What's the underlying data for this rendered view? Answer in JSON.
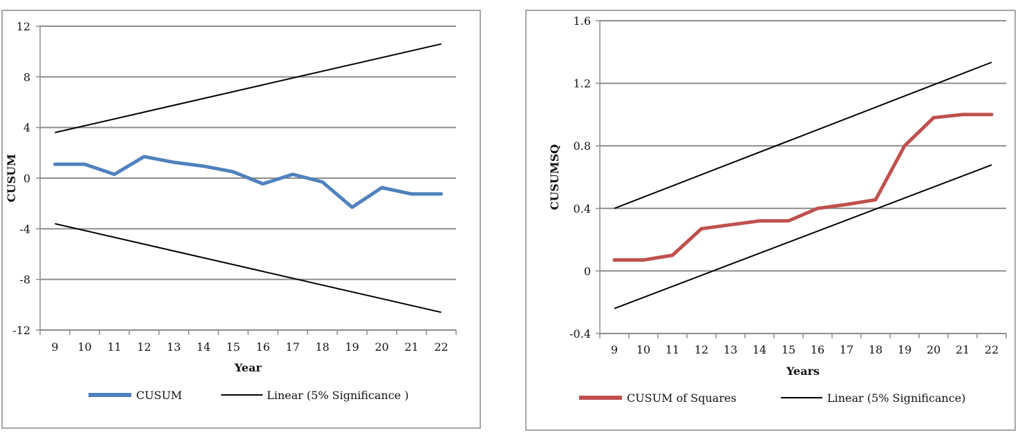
{
  "chart_data": [
    {
      "type": "line",
      "x": [
        9,
        10,
        11,
        12,
        13,
        14,
        15,
        16,
        17,
        18,
        19,
        20,
        21,
        22
      ],
      "xlabel": "Year",
      "ylabel": "CUSUM",
      "ylim": [
        -12,
        12
      ],
      "yticks": [
        "12",
        "8",
        "4",
        "0",
        "-4",
        "-8",
        "-12"
      ],
      "grid": true,
      "legend_position": "bottom",
      "series": [
        {
          "name": "CUSUM",
          "color": "#4F81BD",
          "values": [
            1.1,
            1.1,
            0.3,
            1.7,
            1.25,
            0.95,
            0.5,
            -0.45,
            0.3,
            -0.3,
            -2.3,
            -0.75,
            -1.25,
            -1.25
          ]
        },
        {
          "name": "Linear (5% Significance )",
          "color": "#000000",
          "values": [
            3.6,
            4.13,
            4.67,
            5.2,
            5.73,
            6.27,
            6.8,
            7.34,
            7.87,
            8.4,
            8.94,
            9.47,
            10.0,
            10.6
          ]
        },
        {
          "name": "",
          "color": "#000000",
          "values": [
            -3.6,
            -4.13,
            -4.67,
            -5.2,
            -5.73,
            -6.27,
            -6.8,
            -7.34,
            -7.87,
            -8.4,
            -8.94,
            -9.47,
            -10.0,
            -10.6
          ]
        }
      ]
    },
    {
      "type": "line",
      "x": [
        9,
        10,
        11,
        12,
        13,
        14,
        15,
        16,
        17,
        18,
        19,
        20,
        21,
        22
      ],
      "xlabel": "Years",
      "ylabel": "CUSUMSQ",
      "ylim": [
        -0.4,
        1.6
      ],
      "yticks": [
        "1.6",
        "1.2",
        "0.8",
        "0.4",
        "0",
        "-0.4"
      ],
      "grid": true,
      "legend_position": "bottom",
      "series": [
        {
          "name": "CUSUM of Squares",
          "color": "#C0504D",
          "values": [
            0.07,
            0.07,
            0.1,
            0.27,
            0.295,
            0.32,
            0.32,
            0.4,
            0.425,
            0.455,
            0.8,
            0.98,
            1.0,
            1.0
          ]
        },
        {
          "name": "Linear (5% Significance)",
          "color": "#000000",
          "values": [
            0.4,
            0.472,
            0.544,
            0.615,
            0.687,
            0.759,
            0.831,
            0.903,
            0.975,
            1.046,
            1.118,
            1.19,
            1.262,
            1.334
          ]
        },
        {
          "name": "",
          "color": "#000000",
          "values": [
            -0.24,
            -0.168,
            -0.096,
            -0.025,
            0.047,
            0.119,
            0.191,
            0.263,
            0.335,
            0.406,
            0.478,
            0.55,
            0.622,
            0.678
          ]
        }
      ]
    }
  ]
}
